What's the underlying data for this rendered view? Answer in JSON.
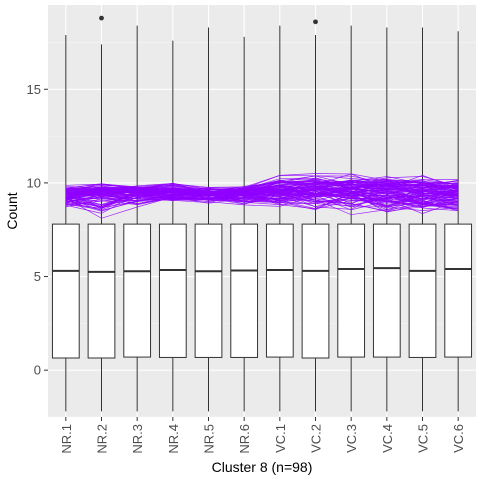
{
  "chart_data": {
    "type": "box",
    "xlabel": "Cluster 8 (n=98)",
    "ylabel": "Count",
    "categories": [
      "NR.1",
      "NR.2",
      "NR.3",
      "NR.4",
      "NR.5",
      "NR.6",
      "VC.1",
      "VC.2",
      "VC.3",
      "VC.4",
      "VC.5",
      "VC.6"
    ],
    "ylim": [
      -2.5,
      19.5
    ],
    "yticks": [
      0,
      5,
      10,
      15
    ],
    "y_minor_gridlines": [
      -2.5,
      2.5,
      7.5,
      12.5,
      17.5
    ],
    "grid": true,
    "legend": "none",
    "boxes": [
      {
        "min": -2.2,
        "q1": 0.65,
        "median": 5.3,
        "q3": 7.8,
        "max": 17.9,
        "outliers": []
      },
      {
        "min": -2.2,
        "q1": 0.65,
        "median": 5.25,
        "q3": 7.8,
        "max": 17.4,
        "outliers": [
          18.8
        ]
      },
      {
        "min": -2.2,
        "q1": 0.7,
        "median": 5.28,
        "q3": 7.8,
        "max": 18.4,
        "outliers": []
      },
      {
        "min": -2.2,
        "q1": 0.68,
        "median": 5.35,
        "q3": 7.8,
        "max": 17.6,
        "outliers": []
      },
      {
        "min": -2.2,
        "q1": 0.68,
        "median": 5.28,
        "q3": 7.8,
        "max": 18.3,
        "outliers": []
      },
      {
        "min": -2.2,
        "q1": 0.68,
        "median": 5.32,
        "q3": 7.8,
        "max": 17.8,
        "outliers": []
      },
      {
        "min": -2.2,
        "q1": 0.7,
        "median": 5.35,
        "q3": 7.8,
        "max": 18.4,
        "outliers": []
      },
      {
        "min": -2.2,
        "q1": 0.65,
        "median": 5.3,
        "q3": 7.8,
        "max": 17.9,
        "outliers": [
          18.6
        ]
      },
      {
        "min": -2.2,
        "q1": 0.7,
        "median": 5.4,
        "q3": 7.8,
        "max": 18.4,
        "outliers": []
      },
      {
        "min": -2.2,
        "q1": 0.7,
        "median": 5.45,
        "q3": 7.8,
        "max": 18.3,
        "outliers": []
      },
      {
        "min": -2.2,
        "q1": 0.68,
        "median": 5.3,
        "q3": 7.8,
        "max": 18.3,
        "outliers": []
      },
      {
        "min": -2.2,
        "q1": 0.7,
        "median": 5.4,
        "q3": 7.8,
        "max": 18.1,
        "outliers": []
      }
    ],
    "profile_lines": {
      "count": 98,
      "mean": [
        9.4,
        9.5,
        9.55,
        9.5,
        9.45,
        9.45,
        9.6,
        9.7,
        9.65,
        9.6,
        9.55,
        9.5
      ],
      "low": [
        8.7,
        7.9,
        8.7,
        8.9,
        8.9,
        8.8,
        8.7,
        8.5,
        8.3,
        8.4,
        8.3,
        8.4
      ],
      "high": [
        9.9,
        10.0,
        9.9,
        10.0,
        9.8,
        9.9,
        10.4,
        10.5,
        10.5,
        10.4,
        10.4,
        10.3
      ]
    },
    "colors": {
      "panel": "#ebebeb",
      "grid_major": "#ffffff",
      "lines": "#8f00ff",
      "box_fill": "#ffffff",
      "box_stroke": "#333333"
    }
  }
}
